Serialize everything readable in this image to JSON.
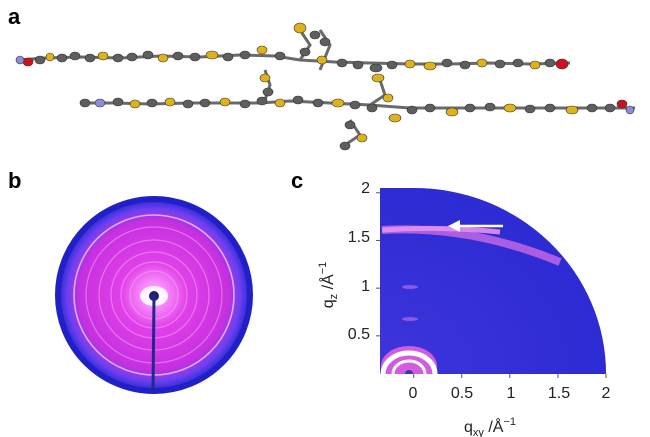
{
  "panels": {
    "a": {
      "label": "a"
    },
    "b": {
      "label": "b"
    },
    "c": {
      "label": "c"
    }
  },
  "colors": {
    "carbon": "#5e5e5e",
    "sulfur": "#e0b21a",
    "oxygen": "#d0101a",
    "nitrogen": "#8c8cd8",
    "scatter_background": "#3330d8",
    "scatter_ring": "#e34fe6",
    "scatter_center": "#ffffff"
  },
  "chart_data": {
    "type": "heatmap",
    "description_kind": "2D GIWAXS scattering pattern",
    "xlabel_base": "q",
    "xlabel_sub": "xy",
    "xlabel_unit": " /Å",
    "xlabel_sup": "−1",
    "ylabel_base": "q",
    "ylabel_sub": "z",
    "ylabel_unit": " /Å",
    "ylabel_sup": "−1",
    "x_ticks": [
      "0",
      "0.5",
      "1",
      "1.5",
      "2"
    ],
    "x_tick_values": [
      0,
      0.5,
      1,
      1.5,
      2
    ],
    "y_ticks": [
      "0.5",
      "1",
      "1.5",
      "2"
    ],
    "y_tick_values": [
      0.5,
      1,
      1.5,
      2
    ],
    "xlim": [
      -0.35,
      2
    ],
    "ylim": [
      0.1,
      2.05
    ],
    "annotation": {
      "type": "arrow",
      "points_to_qz": 1.6
    }
  }
}
